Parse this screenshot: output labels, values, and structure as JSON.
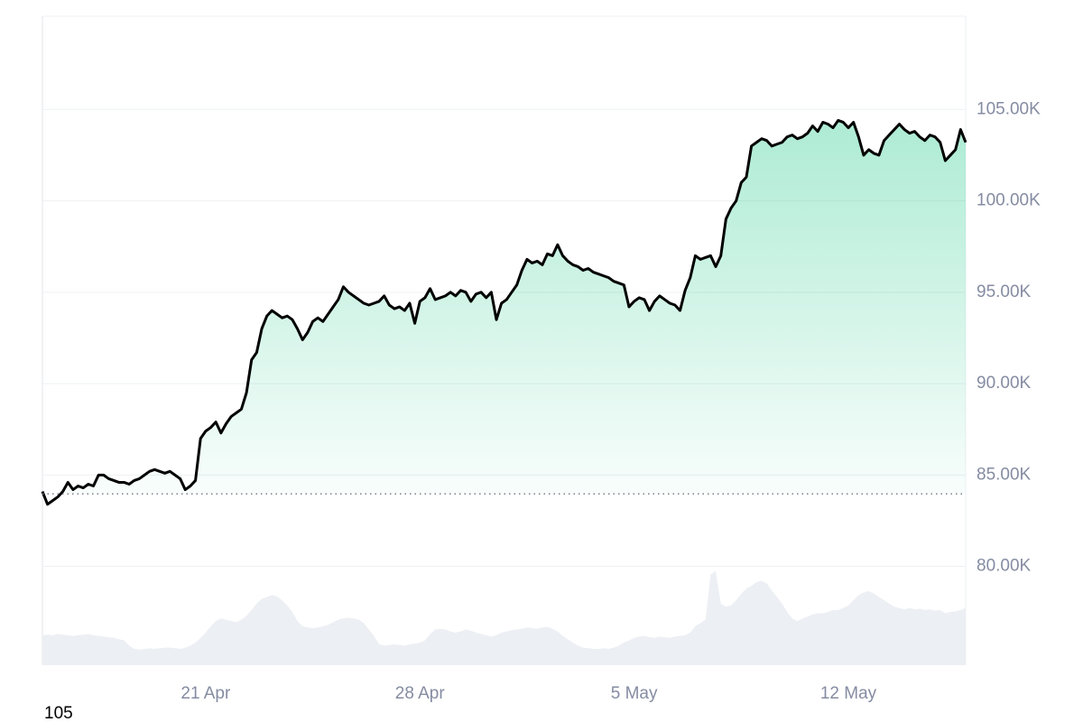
{
  "chart_data": {
    "type": "line",
    "categories": [
      null,
      null,
      null,
      null,
      null,
      null,
      null,
      null,
      null,
      null,
      null,
      null,
      null,
      null,
      null,
      null,
      null,
      null,
      null,
      null,
      null,
      null,
      null,
      null,
      null,
      null,
      null,
      null,
      null,
      null,
      null,
      null,
      "21 Apr",
      null,
      null,
      null,
      null,
      null,
      null,
      null,
      null,
      null,
      null,
      null,
      null,
      null,
      null,
      null,
      null,
      null,
      null,
      null,
      null,
      null,
      null,
      null,
      null,
      null,
      null,
      null,
      null,
      null,
      null,
      null,
      null,
      null,
      null,
      null,
      null,
      null,
      null,
      null,
      null,
      null,
      "28 Apr",
      null,
      null,
      null,
      null,
      null,
      null,
      null,
      null,
      null,
      null,
      null,
      null,
      null,
      null,
      null,
      null,
      null,
      null,
      null,
      null,
      null,
      null,
      null,
      null,
      null,
      null,
      null,
      null,
      null,
      null,
      null,
      null,
      null,
      null,
      null,
      null,
      null,
      null,
      null,
      null,
      null,
      "5 May",
      null,
      null,
      null,
      null,
      null,
      null,
      null,
      null,
      null,
      null,
      null,
      null,
      null,
      null,
      null,
      null,
      null,
      null,
      null,
      null,
      null,
      null,
      null,
      null,
      null,
      null,
      null,
      null,
      null,
      null,
      null,
      null,
      null,
      null,
      null,
      null,
      null,
      null,
      null,
      null,
      null,
      "12 May",
      null,
      null,
      null,
      null,
      null,
      null,
      null,
      null,
      null,
      null,
      null,
      null,
      null,
      null,
      null,
      null,
      null,
      null,
      null,
      null,
      null,
      null,
      null
    ],
    "series": [
      {
        "color": "#16c784",
        "below_color": "#ea3943",
        "values": [
          84100,
          83400,
          83600,
          83800,
          84100,
          84600,
          84200,
          84400,
          84300,
          84500,
          84400,
          85000,
          85000,
          84800,
          84700,
          84600,
          84600,
          84500,
          84700,
          84800,
          85000,
          85200,
          85300,
          85200,
          85100,
          85200,
          85000,
          84800,
          84200,
          84400,
          84700,
          87000,
          87400,
          87600,
          87900,
          87300,
          87800,
          88200,
          88400,
          88600,
          89500,
          91300,
          91700,
          93000,
          93700,
          94000,
          93800,
          93600,
          93700,
          93500,
          93000,
          92400,
          92800,
          93400,
          93600,
          93400,
          93800,
          94200,
          94600,
          95300,
          95000,
          94800,
          94600,
          94400,
          94300,
          94400,
          94500,
          94800,
          94300,
          94100,
          94200,
          94000,
          94400,
          93300,
          94500,
          94700,
          95200,
          94600,
          94700,
          94800,
          95000,
          94800,
          95100,
          95000,
          94500,
          94900,
          95000,
          94700,
          95000,
          93500,
          94400,
          94600,
          95000,
          95400,
          96200,
          96800,
          96600,
          96700,
          96500,
          97100,
          97000,
          97600,
          97000,
          96700,
          96500,
          96400,
          96200,
          96300,
          96100,
          96000,
          95900,
          95800,
          95600,
          95500,
          95400,
          94200,
          94500,
          94700,
          94600,
          94000,
          94500,
          94800,
          94600,
          94400,
          94300,
          94000,
          95100,
          95800,
          97000,
          96800,
          96900,
          97000,
          96400,
          97000,
          99000,
          99600,
          100000,
          101000,
          101300,
          103000,
          103200,
          103400,
          103300,
          103000,
          103100,
          103200,
          103500,
          103600,
          103400,
          103500,
          103700,
          104100,
          103800,
          104300,
          104200,
          104000,
          104400,
          104300,
          104000,
          104300,
          103500,
          102500,
          102800,
          102600,
          102500,
          103300,
          103600,
          103900,
          104200,
          103900,
          103700,
          103800,
          103500,
          103300,
          103600,
          103500,
          103200,
          102200,
          102500,
          102800,
          103900,
          103200
        ]
      },
      {
        "axis": "y2",
        "color": "#eceff3",
        "values": [
          0.46,
          0.47,
          0.46,
          0.48,
          0.47,
          0.46,
          0.45,
          0.46,
          0.47,
          0.48,
          0.46,
          0.45,
          0.44,
          0.43,
          0.42,
          0.4,
          0.38,
          0.3,
          0.25,
          0.24,
          0.25,
          0.26,
          0.25,
          0.26,
          0.27,
          0.27,
          0.26,
          0.25,
          0.27,
          0.3,
          0.35,
          0.42,
          0.5,
          0.6,
          0.68,
          0.72,
          0.7,
          0.68,
          0.66,
          0.7,
          0.76,
          0.85,
          0.95,
          1.02,
          1.05,
          1.08,
          1.06,
          1.0,
          0.92,
          0.82,
          0.68,
          0.6,
          0.58,
          0.57,
          0.58,
          0.6,
          0.62,
          0.66,
          0.7,
          0.72,
          0.73,
          0.72,
          0.7,
          0.65,
          0.55,
          0.45,
          0.32,
          0.3,
          0.31,
          0.32,
          0.31,
          0.3,
          0.32,
          0.33,
          0.35,
          0.38,
          0.48,
          0.55,
          0.56,
          0.55,
          0.52,
          0.5,
          0.52,
          0.55,
          0.53,
          0.5,
          0.48,
          0.46,
          0.44,
          0.46,
          0.5,
          0.52,
          0.54,
          0.55,
          0.56,
          0.58,
          0.57,
          0.56,
          0.58,
          0.59,
          0.56,
          0.52,
          0.45,
          0.4,
          0.35,
          0.3,
          0.27,
          0.26,
          0.25,
          0.25,
          0.26,
          0.25,
          0.27,
          0.3,
          0.35,
          0.38,
          0.42,
          0.44,
          0.45,
          0.43,
          0.42,
          0.44,
          0.43,
          0.42,
          0.44,
          0.45,
          0.46,
          0.5,
          0.6,
          0.65,
          0.7,
          1.4,
          1.45,
          0.95,
          0.9,
          0.92,
          1.0,
          1.1,
          1.18,
          1.22,
          1.28,
          1.3,
          1.26,
          1.15,
          1.05,
          0.95,
          0.82,
          0.72,
          0.68,
          0.72,
          0.75,
          0.78,
          0.8,
          0.8,
          0.82,
          0.85,
          0.85,
          0.88,
          0.92,
          1.0,
          1.08,
          1.12,
          1.14,
          1.1,
          1.05,
          1.0,
          0.95,
          0.9,
          0.88,
          0.86,
          0.88,
          0.86,
          0.87,
          0.85,
          0.86,
          0.84,
          0.85,
          0.8,
          0.82,
          0.83,
          0.85,
          0.88
        ]
      }
    ],
    "baseline": 83970,
    "ylim": [
      74600,
      110100
    ],
    "yticks": [
      {
        "value": 80000,
        "label": "80.00K"
      },
      {
        "value": 85000,
        "label": "85.00K"
      },
      {
        "value": 90000,
        "label": "90.00K"
      },
      {
        "value": 95000,
        "label": "95.00K"
      },
      {
        "value": 100000,
        "label": "100.00K"
      },
      {
        "value": 105000,
        "label": "105.00K"
      }
    ],
    "y2lim": [
      0,
      10
    ],
    "grid": true,
    "footer": "105"
  }
}
